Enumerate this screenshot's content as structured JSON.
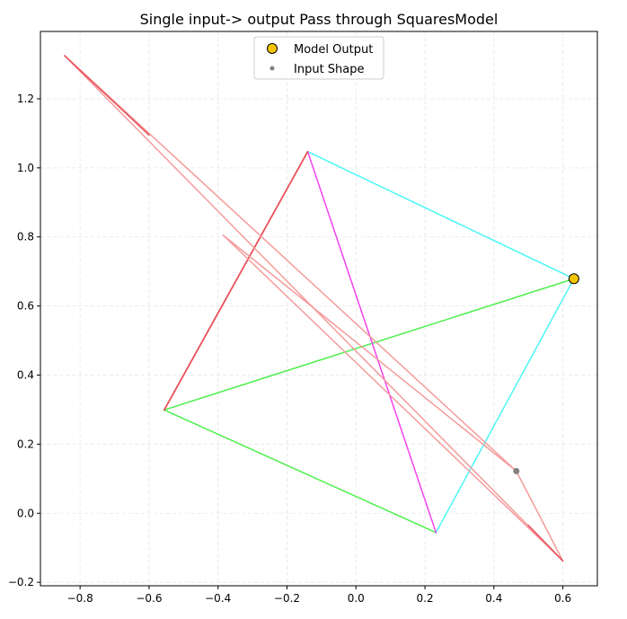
{
  "chart_data": {
    "type": "line",
    "title": "Single input-> output Pass through SquaresModel",
    "xlabel": "",
    "ylabel": "",
    "xlim": [
      -0.915,
      0.7
    ],
    "ylim": [
      -0.21,
      1.395
    ],
    "grid": true,
    "legend_position": "top-center",
    "x_ticks": [
      -0.8,
      -0.6,
      -0.4,
      -0.2,
      0.0,
      0.2,
      0.4,
      0.6
    ],
    "x_tick_labels": [
      "−0.8",
      "−0.6",
      "−0.4",
      "−0.2",
      "0.0",
      "0.2",
      "0.4",
      "0.6"
    ],
    "y_ticks": [
      -0.2,
      0.0,
      0.2,
      0.4,
      0.6,
      0.8,
      1.0,
      1.2
    ],
    "y_tick_labels": [
      "−0.2",
      "0.0",
      "0.2",
      "0.4",
      "0.6",
      "0.8",
      "1.0",
      "1.2"
    ],
    "legend": [
      {
        "label": "Model Output",
        "marker": "circle-large",
        "color": "#f5c400",
        "edge": "#000000"
      },
      {
        "label": "Input Shape",
        "marker": "circle-small",
        "color": "#808080"
      }
    ],
    "segments": [
      {
        "x": [
          -0.14,
          0.632
        ],
        "y": [
          1.047,
          0.679
        ],
        "color": "#4ef7f7",
        "width": 1.5
      },
      {
        "x": [
          0.632,
          0.232
        ],
        "y": [
          0.679,
          -0.056
        ],
        "color": "#4ef7f7",
        "width": 1.5
      },
      {
        "x": [
          -0.556,
          0.632
        ],
        "y": [
          0.299,
          0.679
        ],
        "color": "#4cf04c",
        "width": 1.5
      },
      {
        "x": [
          -0.556,
          0.232
        ],
        "y": [
          0.299,
          -0.056
        ],
        "color": "#4cf04c",
        "width": 1.5
      },
      {
        "x": [
          -0.14,
          0.232
        ],
        "y": [
          1.047,
          -0.056
        ],
        "color": "#f542f0",
        "width": 1.5
      },
      {
        "x": [
          -0.556,
          -0.14
        ],
        "y": [
          0.299,
          1.047
        ],
        "color": "#e8505a",
        "width": 1.8
      },
      {
        "x": [
          -0.845,
          0.465
        ],
        "y": [
          1.325,
          0.122
        ],
        "color": "#f59b9b",
        "width": 1.5
      },
      {
        "x": [
          -0.845,
          0.6
        ],
        "y": [
          1.325,
          -0.138
        ],
        "color": "#f59b9b",
        "width": 1.5
      },
      {
        "x": [
          -0.385,
          0.6
        ],
        "y": [
          0.805,
          -0.138
        ],
        "color": "#f59b9b",
        "width": 1.5
      },
      {
        "x": [
          -0.385,
          0.465
        ],
        "y": [
          0.805,
          0.122
        ],
        "color": "#f59b9b",
        "width": 1.5
      },
      {
        "x": [
          0.465,
          0.6
        ],
        "y": [
          0.122,
          -0.138
        ],
        "color": "#f59b9b",
        "width": 1.5
      },
      {
        "x": [
          -0.845,
          -0.6
        ],
        "y": [
          1.325,
          1.095
        ],
        "color": "#e8505a",
        "width": 1.5
      },
      {
        "x": [
          0.5,
          0.6
        ],
        "y": [
          -0.035,
          -0.138
        ],
        "color": "#e8505a",
        "width": 1.5
      }
    ],
    "points": [
      {
        "name": "Model Output",
        "x": 0.632,
        "y": 0.679,
        "color": "#f5c400",
        "edge": "#000000",
        "size": "large"
      },
      {
        "name": "Input Shape",
        "x": 0.465,
        "y": 0.122,
        "color": "#808080",
        "size": "small"
      }
    ]
  }
}
